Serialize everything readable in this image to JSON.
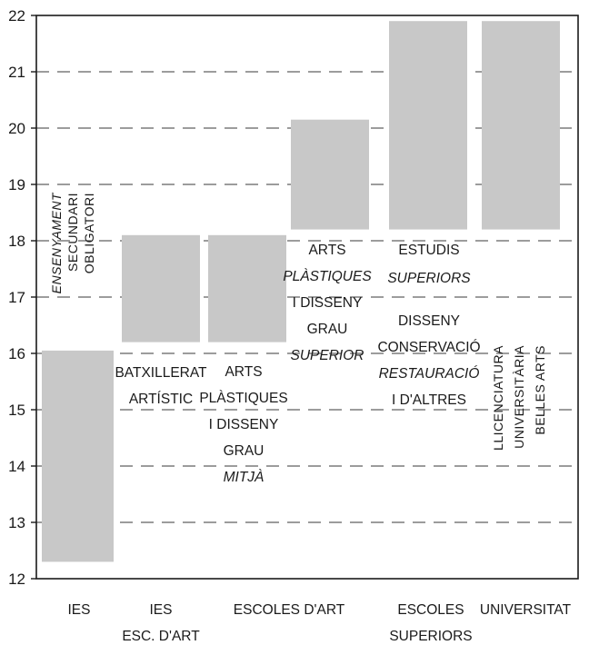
{
  "chart_data": {
    "type": "bar",
    "subtype": "floating-range",
    "ylim": [
      12,
      22
    ],
    "y_ticks": [
      "12",
      "13",
      "14",
      "15",
      "16",
      "17",
      "18",
      "19",
      "20",
      "21",
      "22"
    ],
    "grid": "horizontal-dashed",
    "xlabel": "",
    "ylabel": "",
    "title": "",
    "bar_color": "#c8c8c8",
    "bars": [
      {
        "id": "eso",
        "low": 12.3,
        "high": 16.05,
        "label_lines": [
          "ENSENYAMENT",
          "SECUNDARI",
          "OBLIGATORI"
        ],
        "label_orientation": "vertical"
      },
      {
        "id": "batx",
        "low": 16.2,
        "high": 18.1,
        "label_lines": [
          "BATXILLERAT",
          "ARTÍSTIC"
        ],
        "label_orientation": "horizontal"
      },
      {
        "id": "apd-mitja",
        "low": 16.2,
        "high": 18.1,
        "label_lines": [
          "ARTS",
          "PLÀSTIQUES",
          "I DISSENY",
          "GRAU",
          "MITJÀ"
        ],
        "label_orientation": "horizontal"
      },
      {
        "id": "apd-superior",
        "low": 18.2,
        "high": 20.15,
        "label_lines": [
          "ARTS",
          "PLÀSTIQUES",
          "I DISSENY",
          "GRAU",
          "SUPERIOR"
        ],
        "label_orientation": "horizontal"
      },
      {
        "id": "estudis-superiors",
        "low": 18.2,
        "high": 21.9,
        "label_lines": [
          "ESTUDIS",
          "SUPERIORS",
          "DISSENY",
          "CONSERVACIÓ",
          "RESTAURACIÓ",
          "I D'ALTRES"
        ],
        "label_orientation": "horizontal"
      },
      {
        "id": "universitat",
        "low": 18.2,
        "high": 21.9,
        "label_lines": [
          "LLICENCIATURA",
          "UNIVERSITÀRIA",
          "BELLES ARTS"
        ],
        "label_orientation": "vertical"
      }
    ],
    "categories": [
      {
        "lines": [
          "IES"
        ]
      },
      {
        "lines": [
          "IES",
          "ESC. D'ART"
        ]
      },
      {
        "lines": [
          "ESCOLES D'ART"
        ]
      },
      {
        "lines": [
          "ESCOLES",
          "SUPERIORS"
        ]
      },
      {
        "lines": [
          "UNIVERSITAT"
        ]
      }
    ]
  }
}
